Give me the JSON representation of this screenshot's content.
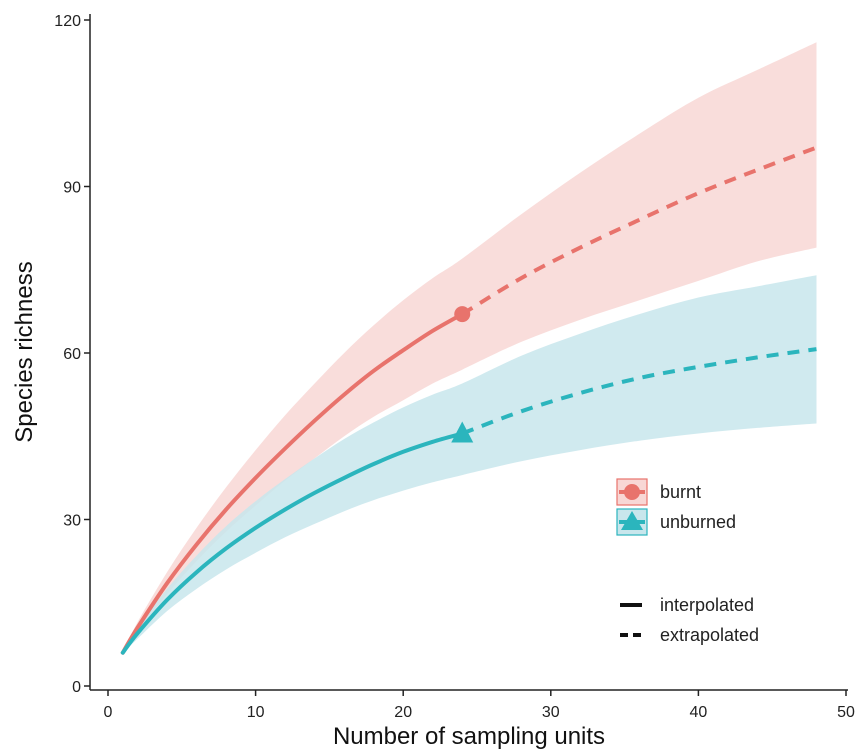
{
  "chart_data": {
    "type": "line",
    "title": "",
    "xlabel": "Number of sampling units",
    "ylabel": "Species richness",
    "xlim": [
      0,
      50
    ],
    "ylim": [
      0,
      120
    ],
    "x_ticks": [
      0,
      10,
      20,
      30,
      40,
      50
    ],
    "y_ticks": [
      0,
      30,
      60,
      90,
      120
    ],
    "grid": false,
    "legend_position": "right",
    "observed_x": 24,
    "series": [
      {
        "name": "burnt",
        "color": "#E8736C",
        "band_color": "#F8D7D5",
        "marker": "circle",
        "x": [
          1,
          2,
          4,
          6,
          8,
          10,
          12,
          14,
          16,
          18,
          20,
          22,
          24,
          28,
          32,
          36,
          40,
          44,
          48
        ],
        "y": [
          6,
          10.5,
          18.5,
          25.5,
          31.8,
          37.5,
          42.8,
          47.8,
          52.5,
          56.8,
          60.5,
          64,
          67,
          73.5,
          79,
          84,
          88.8,
          93,
          97
        ],
        "lower": [
          6,
          9.5,
          16.5,
          22.5,
          27.8,
          32.5,
          37,
          41,
          45,
          48.5,
          51.5,
          54.5,
          57,
          62,
          66,
          69.5,
          73,
          76.5,
          79
        ],
        "upper": [
          6,
          11.5,
          20.5,
          28.5,
          35.8,
          42.5,
          48.8,
          54.5,
          60,
          65,
          69.5,
          73.5,
          77,
          85,
          92.5,
          99.5,
          106,
          111,
          116
        ]
      },
      {
        "name": "unburned",
        "color": "#2BB5BD",
        "band_color": "#C8E6EC",
        "marker": "triangle",
        "x": [
          1,
          2,
          4,
          6,
          8,
          10,
          12,
          14,
          16,
          18,
          20,
          22,
          24,
          28,
          32,
          36,
          40,
          44,
          48
        ],
        "y": [
          6,
          9.5,
          15.5,
          20.5,
          24.8,
          28.5,
          31.8,
          34.8,
          37.5,
          40,
          42.2,
          44,
          45.5,
          49.5,
          52.8,
          55.5,
          57.5,
          59.2,
          60.7
        ],
        "lower": [
          6,
          8.5,
          13.5,
          17.5,
          21,
          24,
          26.8,
          29.2,
          31.5,
          33.5,
          35.2,
          36.7,
          38,
          40.5,
          42.5,
          44.2,
          45.5,
          46.5,
          47.3
        ],
        "upper": [
          6,
          10.5,
          17.5,
          23.5,
          28.8,
          33.3,
          37.3,
          41,
          44.5,
          47.5,
          50.2,
          52.5,
          54.5,
          59.5,
          63.5,
          67,
          70,
          72,
          74
        ]
      }
    ],
    "line_types": [
      {
        "name": "interpolated",
        "dash": "solid"
      },
      {
        "name": "extrapolated",
        "dash": "dashed"
      }
    ]
  }
}
